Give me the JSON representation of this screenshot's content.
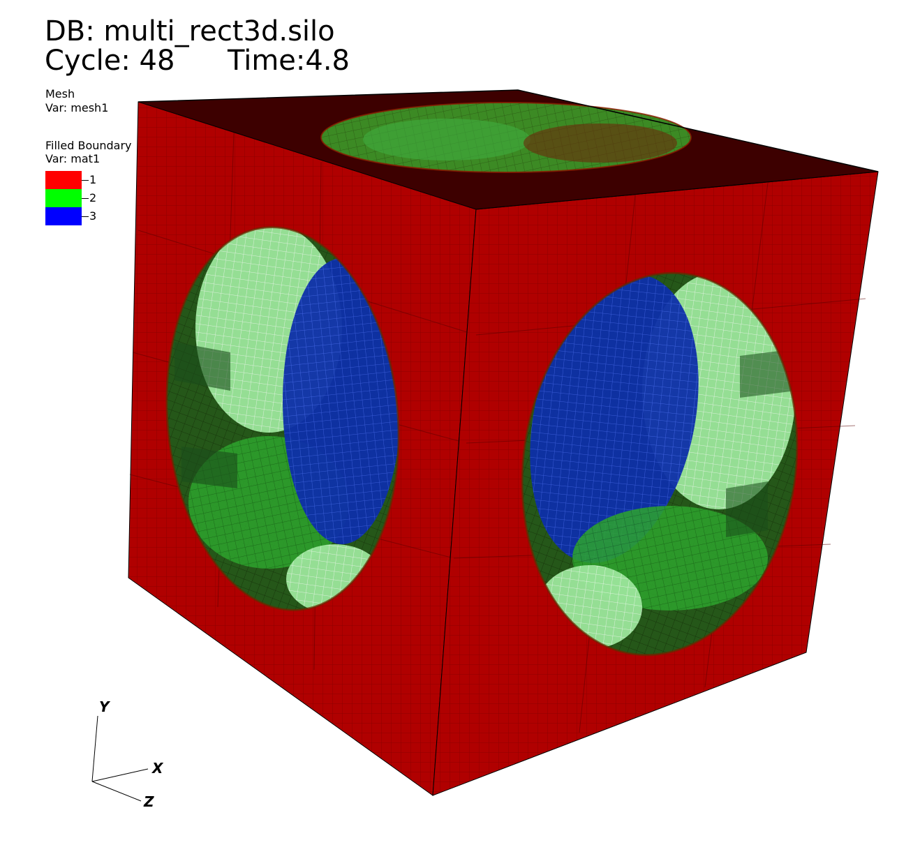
{
  "header": {
    "db_label": "DB: multi_rect3d.silo",
    "cycle_label": "Cycle: 48",
    "time_label": "Time:4.8"
  },
  "legend_mesh": {
    "title": "Mesh",
    "var": "Var: mesh1"
  },
  "legend_boundary": {
    "title": "Filled Boundary",
    "var": "Var: mat1",
    "items": [
      {
        "label": "1",
        "color": "#ff0000"
      },
      {
        "label": "2",
        "color": "#00ff00"
      },
      {
        "label": "3",
        "color": "#0000ff"
      }
    ]
  },
  "axes": {
    "x_label": "X",
    "y_label": "Y",
    "z_label": "Z"
  },
  "colors": {
    "material_1": "#b00000",
    "top_face": "#3d0000",
    "material_2": "#2eb82e",
    "material_3": "#0d2fa8"
  }
}
